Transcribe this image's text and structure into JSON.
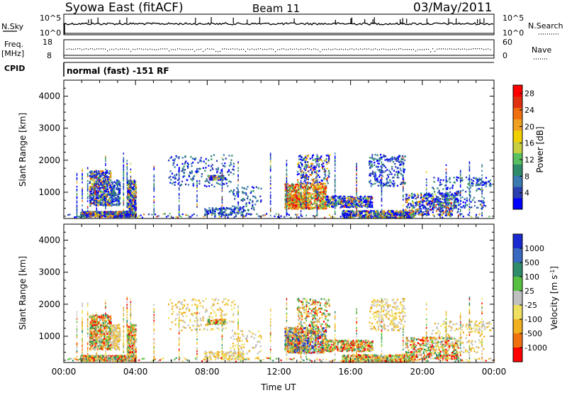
{
  "header": {
    "title": "Syowa East (fitACF)",
    "beam": "Beam 11",
    "date": "03/May/2011"
  },
  "top_panel": {
    "left_label": "N.Sky",
    "right_label": "N.Search",
    "left_ticks": [
      "10^5",
      "10^0"
    ],
    "right_ticks": [
      "10^5",
      "10^0"
    ]
  },
  "freq_panel": {
    "left_label_1": "Freq.",
    "left_label_2": "[MHz]",
    "left_ticks": [
      "18",
      "8"
    ],
    "right_label": "Nave",
    "right_ticks": [
      "60",
      "0"
    ]
  },
  "cpid": {
    "label": "CPID",
    "text": "normal (fast) -151 RF"
  },
  "colors": {
    "power": [
      "#0000ff",
      "#2a3fb0",
      "#3a7ab0",
      "#2e8c6a",
      "#58c060",
      "#c8d040",
      "#f0d000",
      "#f0a020",
      "#f07010",
      "#e03010",
      "#ff0000"
    ],
    "velocity": [
      "#1a2ad0",
      "#3a6ac0",
      "#2e8c6a",
      "#58c040",
      "#c0c0c0",
      "#f0e060",
      "#f0b020",
      "#f07010",
      "#ff0000"
    ]
  },
  "chart_data": [
    {
      "type": "heatmap",
      "name": "power",
      "xlabel": "",
      "ylabel": "Slant Range [km]",
      "xlim": [
        "00:00",
        "24:00"
      ],
      "ylim": [
        180,
        4500
      ],
      "yticks": [
        1000,
        2000,
        3000,
        4000
      ],
      "colorbar": {
        "label": "Power [dB]",
        "ticks": [
          4,
          8,
          12,
          16,
          20,
          24,
          28
        ],
        "range": [
          0,
          30
        ]
      }
    },
    {
      "type": "heatmap",
      "name": "velocity",
      "xlabel": "Time UT",
      "ylabel": "Slant Range [km]",
      "xlim": [
        "00:00",
        "24:00"
      ],
      "ylim": [
        180,
        4500
      ],
      "yticks": [
        1000,
        2000,
        3000,
        4000
      ],
      "xticks": [
        "00:00",
        "04:00",
        "08:00",
        "12:00",
        "16:00",
        "20:00",
        "00:00"
      ],
      "colorbar": {
        "label": "Velocity [m s^-1]",
        "ticks": [
          "1000",
          "500",
          "100",
          "25",
          "-25",
          "-100",
          "-500",
          "-1000"
        ]
      }
    }
  ]
}
